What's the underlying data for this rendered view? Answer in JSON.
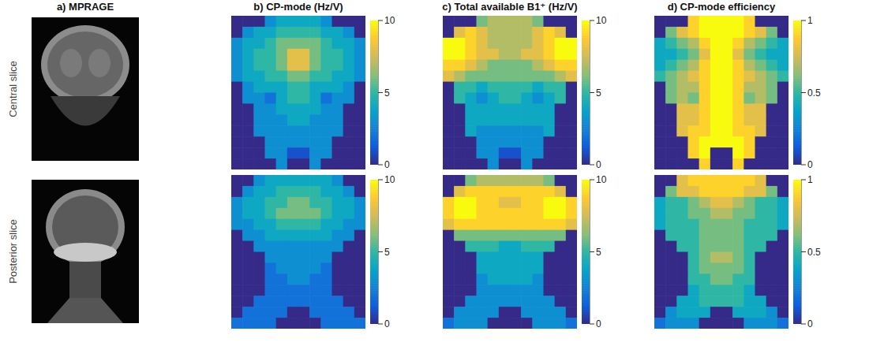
{
  "column_titles": [
    "a) MPRAGE",
    "b) CP-mode (Hz/V)",
    "c) Total available B1⁺ (Hz/V)",
    "d) CP-mode efficiency"
  ],
  "row_labels": [
    "Central slice",
    "Posterior slice"
  ],
  "chart_data": [
    {
      "type": "heatmap",
      "tick_labels": false,
      "colorbar": {
        "range": [
          0,
          10
        ],
        "ticks": [
          0,
          5,
          10
        ]
      },
      "cells": [
        [
          0,
          0,
          0,
          3,
          4,
          4,
          4,
          4,
          3,
          0,
          0,
          0
        ],
        [
          0,
          3,
          4,
          4,
          5,
          5,
          5,
          5,
          4,
          4,
          3,
          0
        ],
        [
          3,
          4,
          4,
          5,
          6,
          6,
          6,
          6,
          5,
          4,
          4,
          3
        ],
        [
          3,
          4,
          5,
          5,
          6,
          8,
          8,
          6,
          5,
          5,
          4,
          3
        ],
        [
          3,
          4,
          5,
          5,
          6,
          8,
          8,
          6,
          5,
          5,
          4,
          3
        ],
        [
          3,
          4,
          4,
          5,
          5,
          6,
          6,
          5,
          5,
          4,
          4,
          3
        ],
        [
          0,
          3,
          4,
          4,
          4,
          5,
          5,
          4,
          4,
          4,
          3,
          0
        ],
        [
          0,
          3,
          3,
          2,
          4,
          5,
          5,
          4,
          2,
          3,
          3,
          0
        ],
        [
          0,
          0,
          3,
          3,
          4,
          4,
          4,
          4,
          3,
          3,
          0,
          0
        ],
        [
          0,
          0,
          3,
          3,
          3,
          4,
          4,
          3,
          3,
          3,
          0,
          0
        ],
        [
          0,
          0,
          3,
          3,
          3,
          3,
          3,
          3,
          3,
          3,
          0,
          0
        ],
        [
          0,
          0,
          0,
          3,
          3,
          3,
          3,
          3,
          3,
          0,
          0,
          0
        ],
        [
          0,
          0,
          0,
          3,
          3,
          1,
          1,
          3,
          3,
          0,
          0,
          0
        ],
        [
          0,
          0,
          0,
          0,
          3,
          0,
          0,
          3,
          0,
          0,
          0,
          0
        ]
      ]
    },
    {
      "type": "heatmap",
      "tick_labels": false,
      "colorbar": {
        "range": [
          0,
          10
        ],
        "ticks": [
          0,
          5,
          10
        ]
      },
      "cells": [
        [
          0,
          0,
          0,
          6,
          7,
          7,
          7,
          7,
          6,
          0,
          0,
          0
        ],
        [
          0,
          8,
          9,
          8,
          7,
          7,
          7,
          7,
          8,
          9,
          8,
          0
        ],
        [
          10,
          10,
          9,
          8,
          7,
          7,
          7,
          7,
          8,
          9,
          10,
          10
        ],
        [
          10,
          10,
          9,
          8,
          8,
          7,
          7,
          8,
          8,
          9,
          10,
          10
        ],
        [
          9,
          9,
          8,
          7,
          6,
          6,
          6,
          6,
          7,
          8,
          9,
          9
        ],
        [
          8,
          7,
          6,
          6,
          6,
          6,
          6,
          6,
          6,
          6,
          7,
          8
        ],
        [
          0,
          5,
          5,
          4,
          5,
          5,
          5,
          5,
          4,
          5,
          5,
          0
        ],
        [
          0,
          5,
          4,
          3,
          4,
          5,
          5,
          4,
          3,
          4,
          5,
          0
        ],
        [
          0,
          0,
          4,
          4,
          4,
          4,
          4,
          4,
          4,
          4,
          0,
          0
        ],
        [
          0,
          0,
          4,
          4,
          4,
          4,
          4,
          4,
          4,
          4,
          0,
          0
        ],
        [
          0,
          0,
          4,
          3,
          3,
          3,
          3,
          3,
          3,
          4,
          0,
          0
        ],
        [
          0,
          0,
          0,
          3,
          3,
          3,
          3,
          3,
          3,
          0,
          0,
          0
        ],
        [
          0,
          0,
          0,
          3,
          3,
          1,
          1,
          3,
          3,
          0,
          0,
          0
        ],
        [
          0,
          0,
          0,
          0,
          3,
          0,
          0,
          3,
          0,
          0,
          0,
          0
        ]
      ]
    },
    {
      "type": "heatmap",
      "tick_labels": false,
      "colorbar": {
        "range": [
          0,
          1
        ],
        "ticks": [
          0,
          0.5,
          1
        ]
      },
      "cells": [
        [
          0,
          0,
          0,
          0.9,
          1,
          1,
          1,
          1,
          0.9,
          0,
          0,
          0
        ],
        [
          0,
          0.6,
          0.8,
          0.9,
          1,
          1,
          1,
          1,
          0.9,
          0.8,
          0.6,
          0
        ],
        [
          0.4,
          0.5,
          0.6,
          0.7,
          0.9,
          1,
          1,
          0.9,
          0.7,
          0.6,
          0.5,
          0.4
        ],
        [
          0.4,
          0.4,
          0.5,
          0.6,
          0.8,
          1,
          1,
          0.8,
          0.6,
          0.5,
          0.4,
          0.4
        ],
        [
          0.4,
          0.5,
          0.6,
          0.7,
          0.9,
          1,
          1,
          0.9,
          0.7,
          0.6,
          0.5,
          0.4
        ],
        [
          0.5,
          0.6,
          0.7,
          0.8,
          0.9,
          1,
          1,
          0.9,
          0.8,
          0.7,
          0.6,
          0.5
        ],
        [
          0,
          0.6,
          0.7,
          0.7,
          0.9,
          1,
          1,
          0.9,
          0.7,
          0.7,
          0.6,
          0
        ],
        [
          0,
          0.6,
          0.7,
          0.6,
          0.9,
          1,
          1,
          0.9,
          0.6,
          0.7,
          0.6,
          0
        ],
        [
          0,
          0,
          0.8,
          0.8,
          0.9,
          1,
          1,
          0.9,
          0.8,
          0.8,
          0,
          0
        ],
        [
          0,
          0,
          0.8,
          0.8,
          0.9,
          1,
          1,
          0.9,
          0.8,
          0.8,
          0,
          0
        ],
        [
          0,
          0,
          0.8,
          0.9,
          0.9,
          1,
          1,
          0.9,
          0.9,
          0.8,
          0,
          0
        ],
        [
          0,
          0,
          0,
          0.9,
          1,
          1,
          1,
          1,
          0.9,
          0,
          0,
          0
        ],
        [
          0,
          0,
          0,
          0.9,
          1,
          0,
          0,
          1,
          0.9,
          0,
          0,
          0
        ],
        [
          0,
          0,
          0,
          0,
          0.9,
          0,
          0,
          0.9,
          0,
          0,
          0,
          0
        ]
      ]
    },
    {
      "type": "heatmap",
      "tick_labels": false,
      "colorbar": {
        "range": [
          0,
          10
        ],
        "ticks": [
          0,
          5,
          10
        ]
      },
      "cells": [
        [
          0,
          0,
          3,
          4,
          4,
          4,
          4,
          4,
          4,
          3,
          0,
          0
        ],
        [
          0,
          3,
          4,
          4,
          5,
          5,
          5,
          5,
          4,
          4,
          3,
          0
        ],
        [
          3,
          4,
          4,
          5,
          5,
          6,
          6,
          5,
          5,
          4,
          4,
          3
        ],
        [
          3,
          4,
          4,
          5,
          6,
          6,
          6,
          6,
          5,
          4,
          4,
          3
        ],
        [
          3,
          3,
          4,
          4,
          5,
          5,
          5,
          5,
          4,
          4,
          3,
          3
        ],
        [
          0,
          3,
          3,
          4,
          4,
          4,
          4,
          4,
          4,
          3,
          3,
          0
        ],
        [
          0,
          0,
          3,
          3,
          3,
          3,
          3,
          3,
          3,
          3,
          0,
          0
        ],
        [
          0,
          0,
          0,
          3,
          3,
          3,
          3,
          3,
          3,
          0,
          0,
          0
        ],
        [
          0,
          0,
          0,
          2,
          3,
          3,
          3,
          3,
          2,
          0,
          0,
          0
        ],
        [
          0,
          0,
          0,
          2,
          2,
          3,
          3,
          2,
          2,
          0,
          0,
          0
        ],
        [
          0,
          0,
          0,
          2,
          2,
          2,
          2,
          2,
          2,
          0,
          0,
          0
        ],
        [
          0,
          0,
          2,
          2,
          2,
          2,
          2,
          2,
          2,
          2,
          0,
          0
        ],
        [
          0,
          2,
          2,
          2,
          2,
          0,
          0,
          2,
          2,
          2,
          2,
          0
        ],
        [
          2,
          2,
          2,
          2,
          0,
          0,
          0,
          0,
          2,
          2,
          2,
          2
        ]
      ]
    },
    {
      "type": "heatmap",
      "tick_labels": false,
      "colorbar": {
        "range": [
          0,
          10
        ],
        "ticks": [
          0,
          5,
          10
        ]
      },
      "cells": [
        [
          0,
          0,
          6,
          7,
          7,
          7,
          7,
          7,
          7,
          6,
          0,
          0
        ],
        [
          0,
          8,
          9,
          9,
          9,
          9,
          9,
          9,
          9,
          9,
          8,
          0
        ],
        [
          9,
          10,
          10,
          9,
          9,
          8,
          8,
          9,
          9,
          10,
          10,
          9
        ],
        [
          9,
          10,
          10,
          9,
          9,
          9,
          9,
          9,
          9,
          10,
          10,
          9
        ],
        [
          8,
          9,
          9,
          9,
          9,
          9,
          9,
          9,
          9,
          9,
          9,
          8
        ],
        [
          0,
          6,
          6,
          6,
          6,
          6,
          6,
          6,
          6,
          6,
          6,
          0
        ],
        [
          0,
          0,
          5,
          5,
          5,
          4,
          4,
          5,
          5,
          5,
          0,
          0
        ],
        [
          0,
          0,
          0,
          4,
          4,
          4,
          4,
          4,
          4,
          0,
          0,
          0
        ],
        [
          0,
          0,
          0,
          4,
          4,
          4,
          4,
          4,
          4,
          0,
          0,
          0
        ],
        [
          0,
          0,
          0,
          3,
          4,
          4,
          4,
          4,
          3,
          0,
          0,
          0
        ],
        [
          0,
          0,
          0,
          3,
          3,
          3,
          3,
          3,
          3,
          0,
          0,
          0
        ],
        [
          0,
          0,
          3,
          3,
          3,
          3,
          3,
          3,
          3,
          3,
          0,
          0
        ],
        [
          0,
          3,
          3,
          3,
          3,
          0,
          0,
          3,
          3,
          3,
          3,
          0
        ],
        [
          2,
          3,
          3,
          3,
          0,
          0,
          0,
          0,
          3,
          3,
          3,
          2
        ]
      ]
    },
    {
      "type": "heatmap",
      "tick_labels": false,
      "colorbar": {
        "range": [
          0,
          1
        ],
        "ticks": [
          0,
          0.5,
          1
        ]
      },
      "cells": [
        [
          0,
          0,
          0.8,
          0.9,
          0.9,
          0.9,
          0.9,
          0.9,
          0.9,
          0.8,
          0,
          0
        ],
        [
          0,
          0.6,
          0.8,
          0.8,
          0.9,
          0.9,
          0.9,
          0.9,
          0.8,
          0.8,
          0.6,
          0
        ],
        [
          0.4,
          0.5,
          0.5,
          0.6,
          0.7,
          0.8,
          0.8,
          0.7,
          0.6,
          0.5,
          0.5,
          0.4
        ],
        [
          0.4,
          0.5,
          0.5,
          0.6,
          0.6,
          0.7,
          0.7,
          0.6,
          0.6,
          0.5,
          0.5,
          0.4
        ],
        [
          0.4,
          0.5,
          0.5,
          0.5,
          0.6,
          0.6,
          0.6,
          0.6,
          0.5,
          0.5,
          0.5,
          0.4
        ],
        [
          0,
          0.5,
          0.5,
          0.5,
          0.6,
          0.6,
          0.6,
          0.6,
          0.5,
          0.5,
          0.5,
          0
        ],
        [
          0,
          0,
          0.5,
          0.5,
          0.6,
          0.6,
          0.6,
          0.6,
          0.5,
          0.5,
          0,
          0
        ],
        [
          0,
          0,
          0,
          0.5,
          0.6,
          0.7,
          0.7,
          0.6,
          0.5,
          0,
          0,
          0
        ],
        [
          0,
          0,
          0,
          0.5,
          0.6,
          0.6,
          0.6,
          0.6,
          0.5,
          0,
          0,
          0
        ],
        [
          0,
          0,
          0,
          0.5,
          0.5,
          0.6,
          0.6,
          0.5,
          0.5,
          0,
          0,
          0
        ],
        [
          0,
          0,
          0,
          0.4,
          0.5,
          0.5,
          0.5,
          0.5,
          0.4,
          0,
          0,
          0
        ],
        [
          0,
          0,
          0.4,
          0.4,
          0.5,
          0.5,
          0.5,
          0.5,
          0.4,
          0.4,
          0,
          0
        ],
        [
          0,
          0.3,
          0.4,
          0.4,
          0.4,
          0,
          0,
          0.4,
          0.4,
          0.4,
          0.3,
          0
        ],
        [
          0.2,
          0.3,
          0.3,
          0.3,
          0,
          0,
          0,
          0,
          0.3,
          0.3,
          0.3,
          0.2
        ]
      ]
    }
  ]
}
